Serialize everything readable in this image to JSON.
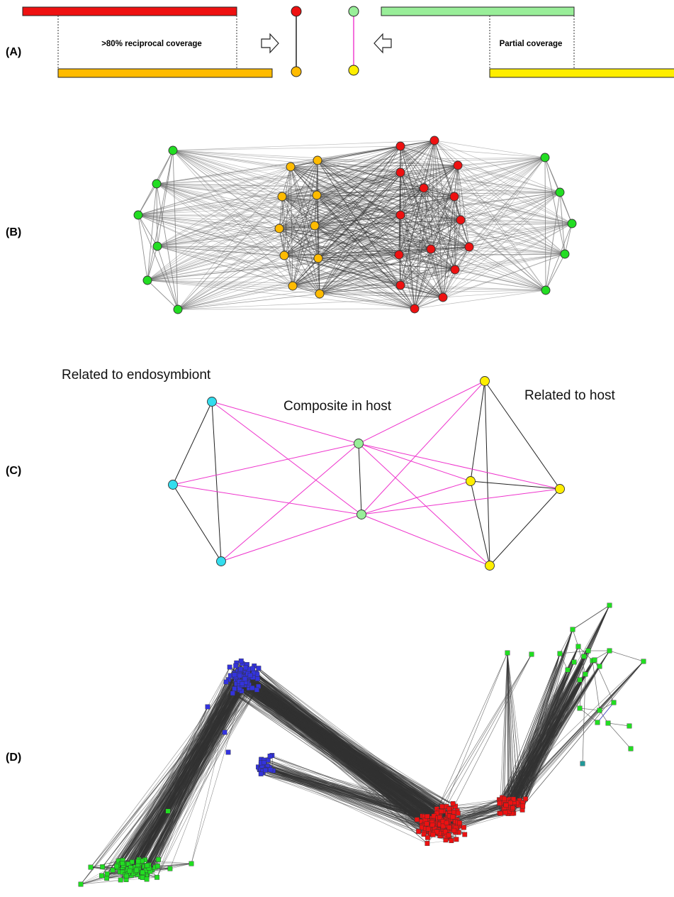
{
  "panels": {
    "a": {
      "label": "(A)",
      "left_coverage": ">80% reciprocal coverage",
      "right_coverage": "Partial coverage"
    },
    "b": {
      "label": "(B)"
    },
    "c": {
      "label": "(C)",
      "group_endosymbiont": "Related to endosymbiont",
      "group_composite": "Composite in host",
      "group_host": "Related to host"
    },
    "d": {
      "label": "(D)"
    }
  },
  "colors": {
    "red": "#ee1111",
    "orange": "#ffbb00",
    "green_node": "#22dd22",
    "light_green": "#99ee99",
    "yellow": "#ffee00",
    "cyan": "#33ddee",
    "magenta": "#ee33cc",
    "blue": "#3333dd",
    "teal": "#229999",
    "edge_dark": "#333333",
    "edge_gray": "#888888"
  }
}
